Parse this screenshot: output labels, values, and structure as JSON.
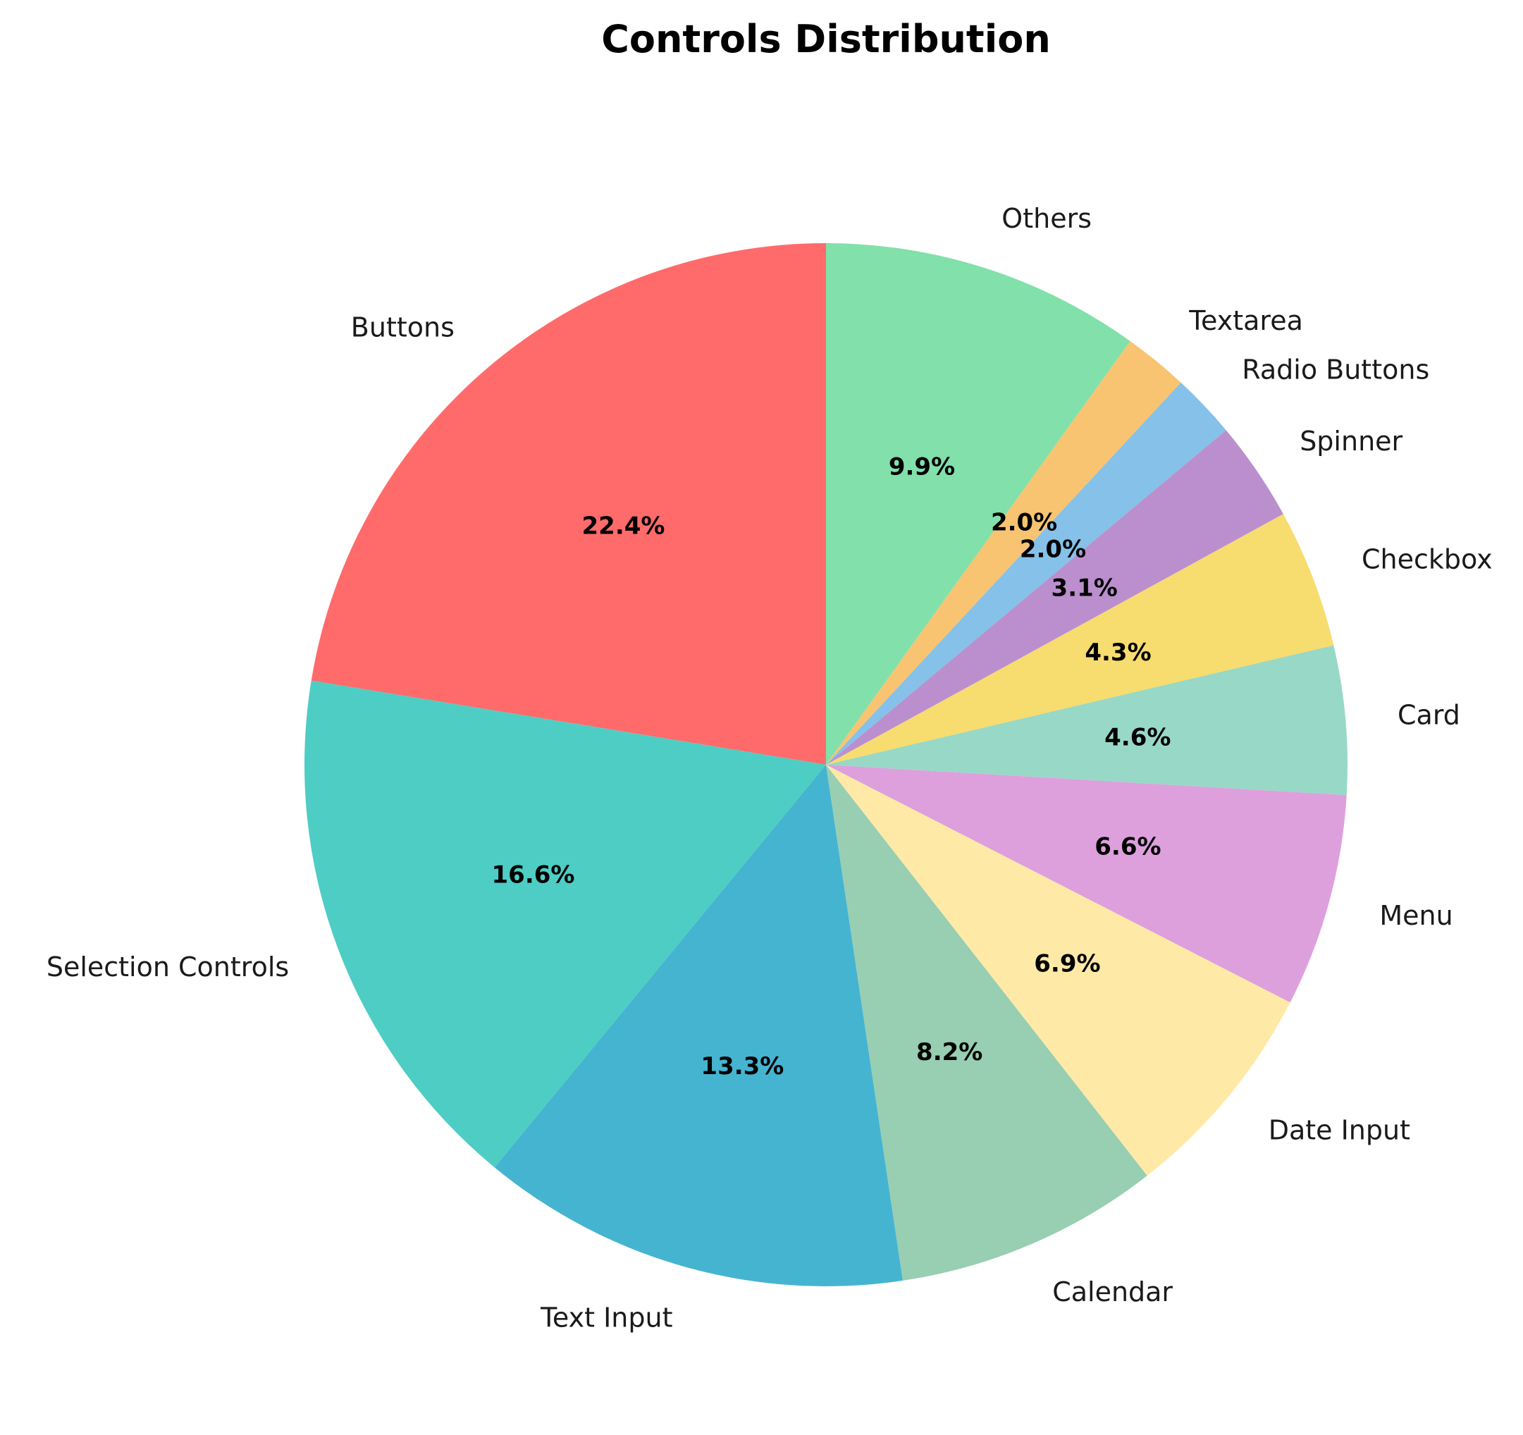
{
  "chart_data": {
    "type": "pie",
    "title": "Controls Distribution",
    "start_angle_deg": 90,
    "direction": "counterclockwise",
    "slices": [
      {
        "label": "Buttons",
        "value": 22.4,
        "pct_text": "22.4%",
        "color": "#FF6B6B"
      },
      {
        "label": "Selection Controls",
        "value": 16.6,
        "pct_text": "16.6%",
        "color": "#4ECDC4"
      },
      {
        "label": "Text Input",
        "value": 13.3,
        "pct_text": "13.3%",
        "color": "#45B4D0"
      },
      {
        "label": "Calendar",
        "value": 8.2,
        "pct_text": "8.2%",
        "color": "#98CEB2"
      },
      {
        "label": "Date Input",
        "value": 6.9,
        "pct_text": "6.9%",
        "color": "#FFE9A6"
      },
      {
        "label": "Menu",
        "value": 6.6,
        "pct_text": "6.6%",
        "color": "#DDA0DD"
      },
      {
        "label": "Card",
        "value": 4.6,
        "pct_text": "4.6%",
        "color": "#98D8C6"
      },
      {
        "label": "Checkbox",
        "value": 4.3,
        "pct_text": "4.3%",
        "color": "#F7DC6F"
      },
      {
        "label": "Spinner",
        "value": 3.1,
        "pct_text": "3.1%",
        "color": "#BB8FCE"
      },
      {
        "label": "Radio Buttons",
        "value": 2.0,
        "pct_text": "2.0%",
        "color": "#85C1E9"
      },
      {
        "label": "Textarea",
        "value": 2.0,
        "pct_text": "2.0%",
        "color": "#F8C471"
      },
      {
        "label": "Others",
        "value": 9.9,
        "pct_text": "9.9%",
        "color": "#82E0AA"
      }
    ]
  }
}
